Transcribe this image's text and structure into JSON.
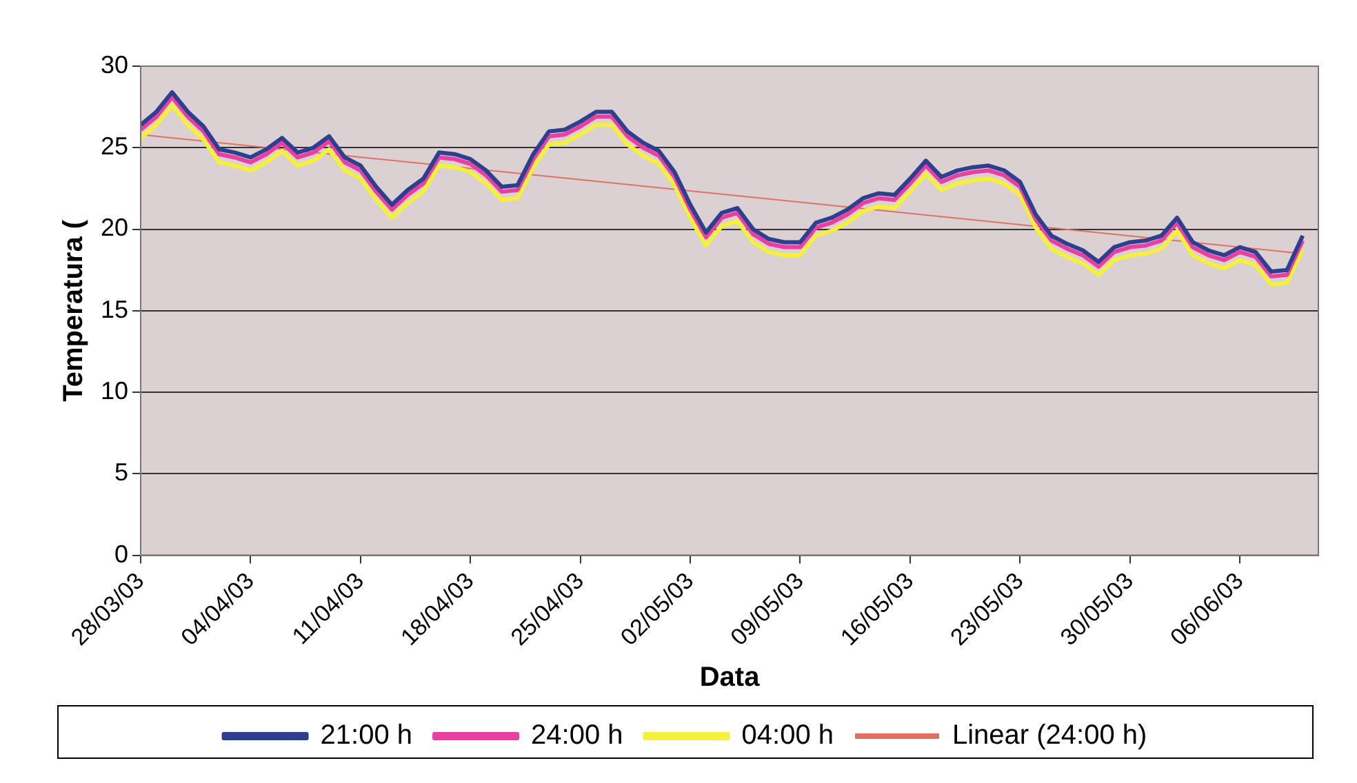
{
  "chart_data": {
    "type": "line",
    "xlabel": "Data",
    "ylabel": "Temperatura (",
    "x": [
      "--03-28",
      "--03-29",
      "--03-30",
      "--03-31",
      "--04-01",
      "--04-02",
      "--04-03",
      "--04-04",
      "--04-05",
      "--04-06",
      "--04-07",
      "--04-08",
      "--04-09",
      "--04-10",
      "--04-11",
      "--04-12",
      "--04-13",
      "--04-14",
      "--04-15",
      "--04-16",
      "--04-17",
      "--04-18",
      "--04-19",
      "--04-20",
      "--04-21",
      "--04-22",
      "--04-23",
      "--04-24",
      "--04-25",
      "--04-26",
      "--04-27",
      "--04-28",
      "--04-29",
      "--04-30",
      "--05-01",
      "--05-02",
      "--05-03",
      "--05-04",
      "--05-05",
      "--05-06",
      "--05-07",
      "--05-08",
      "--05-09",
      "--05-10",
      "--05-11",
      "--05-12",
      "--05-13",
      "--05-14",
      "--05-15",
      "--05-16",
      "--05-17",
      "--05-18",
      "--05-19",
      "--05-20",
      "--05-21",
      "--05-22",
      "--05-23",
      "--05-24",
      "--05-25",
      "--05-26",
      "--05-27",
      "--05-28",
      "--05-29",
      "--05-30",
      "--05-31",
      "--06-01",
      "--06-02",
      "--06-03",
      "--06-04",
      "--06-05",
      "--06-06",
      "--06-07",
      "--06-08",
      "--06-09",
      "--06-10"
    ],
    "series": [
      {
        "name": "21:00 h",
        "color": "#2e3f8f",
        "values": [
          26.4,
          27.2,
          28.4,
          27.2,
          26.3,
          24.9,
          24.7,
          24.4,
          24.9,
          25.6,
          24.7,
          25.0,
          25.7,
          24.4,
          23.9,
          22.6,
          21.5,
          22.4,
          23.1,
          24.7,
          24.6,
          24.3,
          23.6,
          22.6,
          22.7,
          24.6,
          26.0,
          26.1,
          26.6,
          27.2,
          27.2,
          26.0,
          25.3,
          24.8,
          23.5,
          21.5,
          19.8,
          21.0,
          21.3,
          20.0,
          19.4,
          19.2,
          19.2,
          20.4,
          20.7,
          21.2,
          21.9,
          22.2,
          22.1,
          23.1,
          24.2,
          23.2,
          23.6,
          23.8,
          23.9,
          23.6,
          22.9,
          20.9,
          19.6,
          19.1,
          18.7,
          18.0,
          18.9,
          19.2,
          19.3,
          19.6,
          20.7,
          19.2,
          18.7,
          18.4,
          18.9,
          18.6,
          17.4,
          17.5,
          19.6
        ]
      },
      {
        "name": "24:00 h",
        "color": "#e83fa0",
        "values": [
          26.1,
          26.9,
          28.1,
          26.9,
          26.0,
          24.6,
          24.4,
          24.1,
          24.6,
          25.3,
          24.4,
          24.7,
          25.4,
          24.1,
          23.6,
          22.3,
          21.2,
          22.1,
          22.8,
          24.4,
          24.3,
          24.0,
          23.3,
          22.3,
          22.4,
          24.3,
          25.7,
          25.8,
          26.3,
          26.9,
          26.9,
          25.7,
          25.0,
          24.5,
          23.2,
          21.2,
          19.5,
          20.7,
          21.0,
          19.7,
          19.1,
          18.9,
          18.9,
          20.1,
          20.4,
          20.9,
          21.6,
          21.9,
          21.8,
          22.8,
          23.9,
          22.9,
          23.3,
          23.5,
          23.6,
          23.3,
          22.6,
          20.6,
          19.3,
          18.8,
          18.4,
          17.7,
          18.6,
          18.9,
          19.0,
          19.3,
          20.4,
          18.9,
          18.4,
          18.1,
          18.6,
          18.3,
          17.1,
          17.2,
          19.3
        ]
      },
      {
        "name": "04:00 h",
        "color": "#f5f03a",
        "values": [
          25.6,
          26.4,
          27.6,
          26.4,
          25.5,
          24.1,
          23.9,
          23.6,
          24.1,
          24.8,
          23.9,
          24.2,
          24.9,
          23.6,
          23.1,
          21.8,
          20.7,
          21.6,
          22.3,
          23.9,
          23.8,
          23.5,
          22.8,
          21.8,
          21.9,
          23.8,
          25.2,
          25.3,
          25.8,
          26.4,
          26.4,
          25.2,
          24.5,
          24.0,
          22.7,
          20.7,
          19.0,
          20.2,
          20.5,
          19.2,
          18.6,
          18.4,
          18.4,
          19.6,
          19.9,
          20.4,
          21.1,
          21.4,
          21.3,
          22.3,
          23.4,
          22.4,
          22.8,
          23.0,
          23.1,
          22.8,
          22.1,
          20.1,
          18.8,
          18.3,
          17.9,
          17.2,
          18.1,
          18.4,
          18.5,
          18.8,
          19.9,
          18.4,
          17.9,
          17.6,
          18.1,
          17.8,
          16.6,
          16.7,
          18.8
        ]
      },
      {
        "name": "Linear (24:00 h)",
        "color": "#e07060",
        "type": "line",
        "x": [
          "--03-28",
          "--06-10"
        ],
        "values": [
          25.8,
          18.5
        ]
      }
    ],
    "xlim": [
      "--03-28",
      "--06-11"
    ],
    "xticks": [
      {
        "value": "--03-28",
        "label": "28/03/03"
      },
      {
        "value": "--04-04",
        "label": "04/04/03"
      },
      {
        "value": "--04-11",
        "label": "11/04/03"
      },
      {
        "value": "--04-18",
        "label": "18/04/03"
      },
      {
        "value": "--04-25",
        "label": "25/04/03"
      },
      {
        "value": "--05-02",
        "label": "02/05/03"
      },
      {
        "value": "--05-09",
        "label": "09/05/03"
      },
      {
        "value": "--05-16",
        "label": "16/05/03"
      },
      {
        "value": "--05-23",
        "label": "23/05/03"
      },
      {
        "value": "--05-30",
        "label": "30/05/03"
      },
      {
        "value": "--06-06",
        "label": "06/06/03"
      }
    ],
    "ylim": [
      0,
      30
    ],
    "yticks": [
      0,
      5,
      10,
      15,
      20,
      25,
      30
    ],
    "grid": "y",
    "legend": "bottom",
    "marker": "none",
    "line_style": "solid"
  }
}
